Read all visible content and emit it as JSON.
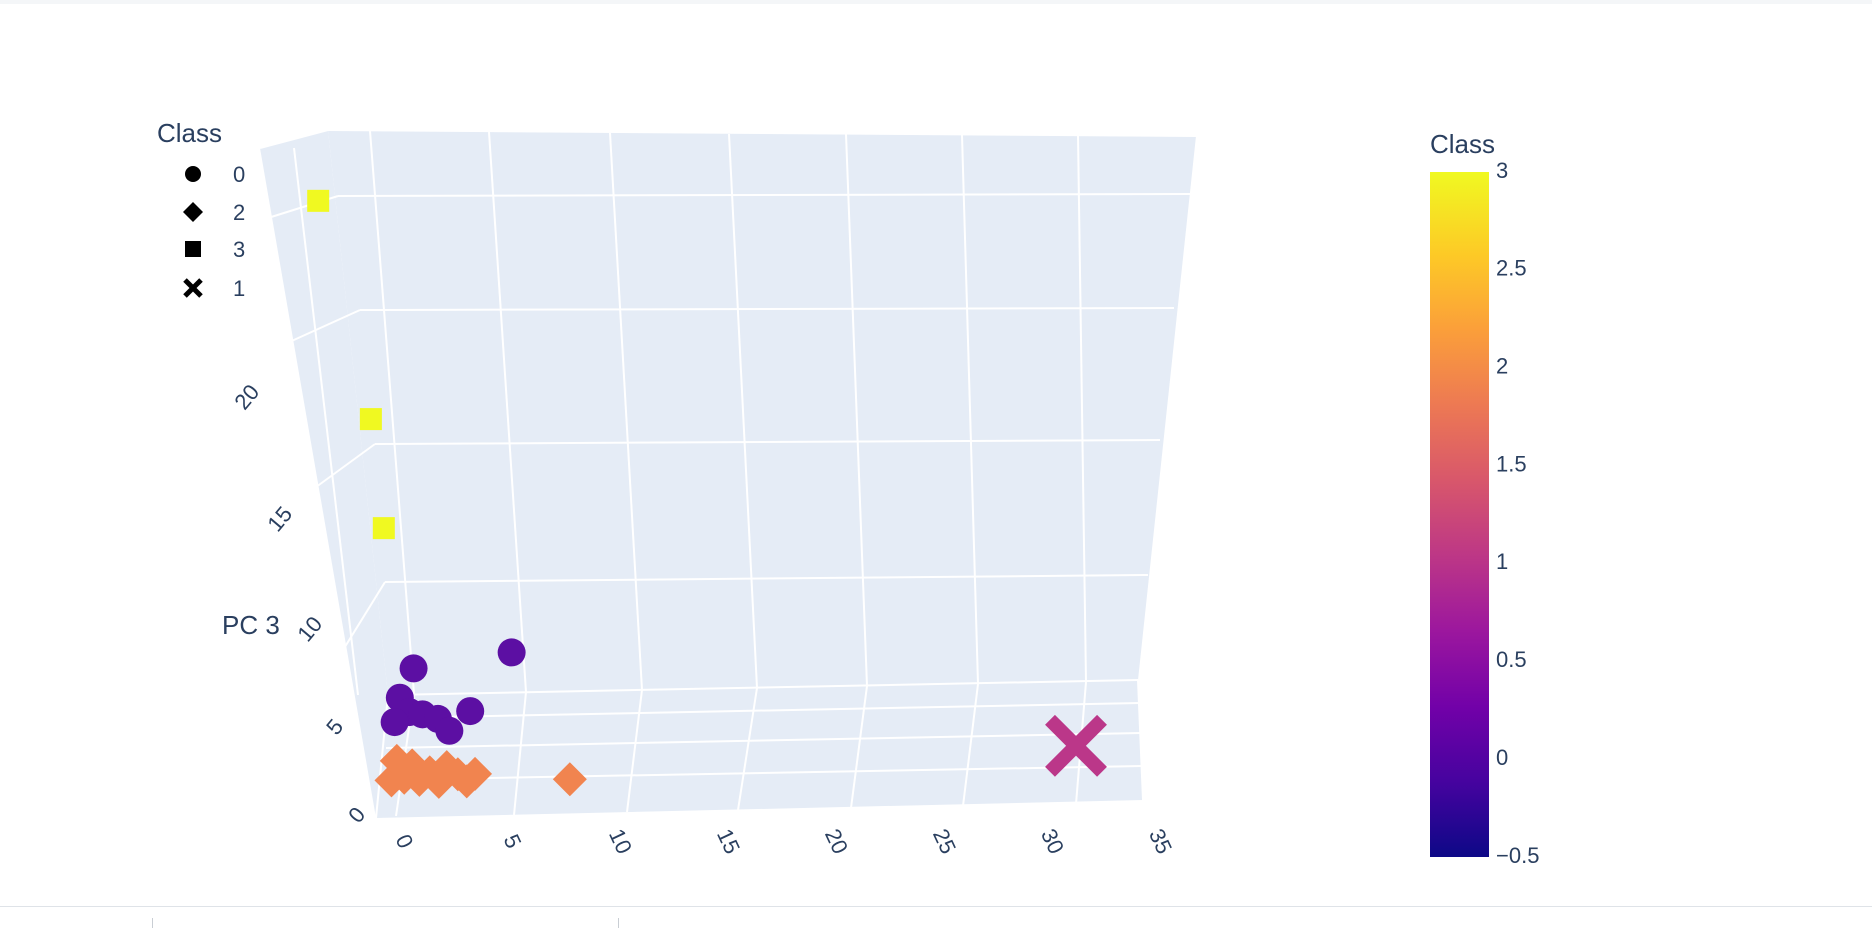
{
  "chart_data": {
    "type": "scatter",
    "title": "",
    "zlabel": "PC 3",
    "x_ticks": [
      "0",
      "5",
      "10",
      "15",
      "20",
      "25",
      "30",
      "35"
    ],
    "z_ticks": [
      "0",
      "5",
      "10",
      "15",
      "20"
    ],
    "legend": {
      "title": "Class",
      "placement": "top-left",
      "entries": [
        {
          "label": "0",
          "symbol": "circle"
        },
        {
          "label": "2",
          "symbol": "diamond"
        },
        {
          "label": "3",
          "symbol": "square"
        },
        {
          "label": "1",
          "symbol": "x"
        }
      ]
    },
    "colorbar": {
      "title": "Class",
      "ticks": [
        "3",
        "2.5",
        "2",
        "1.5",
        "1",
        "0.5",
        "0",
        "−0.5"
      ],
      "range": [
        -0.5,
        3
      ],
      "colors": [
        "#0d0887",
        "#46039f",
        "#7201a8",
        "#9c179e",
        "#bd3786",
        "#d8576b",
        "#ed7953",
        "#fb9f3a",
        "#fdca26",
        "#f0f921"
      ]
    },
    "series": [
      {
        "name": "0",
        "symbol": "circle",
        "color": "#5c0fa3",
        "points": [
          {
            "x": 1.5,
            "z": 5.2
          },
          {
            "x": 0.8,
            "z": 4.0
          },
          {
            "x": 1.2,
            "z": 3.4
          },
          {
            "x": 0.5,
            "z": 3.0
          },
          {
            "x": 1.8,
            "z": 3.3
          },
          {
            "x": 2.5,
            "z": 3.1
          },
          {
            "x": 3.0,
            "z": 2.6
          },
          {
            "x": 4.0,
            "z": 3.4
          },
          {
            "x": 6.0,
            "z": 5.8
          }
        ]
      },
      {
        "name": "2",
        "symbol": "diamond",
        "color": "#f1844f",
        "points": [
          {
            "x": 0.2,
            "z": 0.6
          },
          {
            "x": 0.5,
            "z": 1.4
          },
          {
            "x": 0.8,
            "z": 0.7
          },
          {
            "x": 1.2,
            "z": 1.2
          },
          {
            "x": 1.5,
            "z": 0.6
          },
          {
            "x": 2.0,
            "z": 0.9
          },
          {
            "x": 2.4,
            "z": 0.5
          },
          {
            "x": 2.8,
            "z": 1.1
          },
          {
            "x": 3.3,
            "z": 0.8
          },
          {
            "x": 3.7,
            "z": 0.5
          },
          {
            "x": 4.1,
            "z": 0.8
          },
          {
            "x": 8.5,
            "z": 0.5
          }
        ]
      },
      {
        "name": "3",
        "symbol": "square",
        "color": "#f0f921",
        "points": [
          {
            "x": -1.5,
            "z": 24.5
          },
          {
            "x": 0.2,
            "z": 15.5
          },
          {
            "x": 0.5,
            "z": 11.0
          }
        ]
      },
      {
        "name": "1",
        "symbol": "x",
        "color": "#bb3789",
        "points": [
          {
            "x": 32.0,
            "z": 1.5
          }
        ]
      }
    ]
  }
}
